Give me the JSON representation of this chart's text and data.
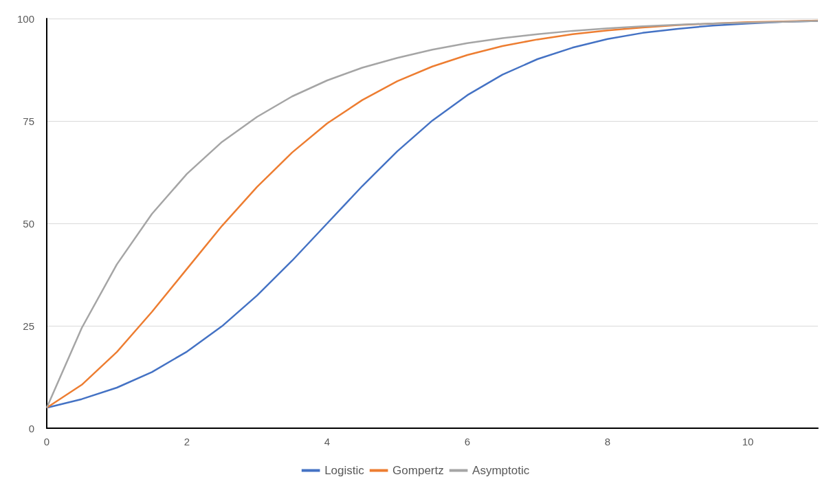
{
  "chart_data": {
    "type": "line",
    "x": [
      0,
      0.5,
      1,
      1.5,
      2,
      2.5,
      3,
      3.5,
      4,
      4.5,
      5,
      5.5,
      6,
      6.5,
      7,
      7.5,
      8,
      8.5,
      9,
      9.5,
      10,
      10.5,
      11
    ],
    "series": [
      {
        "name": "Logistic",
        "color": "#4472c4",
        "values": [
          5.0,
          7.1,
          9.9,
          13.7,
          18.7,
          24.9,
          32.4,
          40.9,
          50,
          59.1,
          67.6,
          75.1,
          81.3,
          86.3,
          90.1,
          92.9,
          95.0,
          96.5,
          97.5,
          98.3,
          98.8,
          99.2,
          99.4
        ]
      },
      {
        "name": "Gompertz",
        "color": "#ed7d31",
        "values": [
          5.0,
          10.6,
          18.6,
          28.4,
          38.9,
          49.4,
          58.9,
          67.3,
          74.4,
          80.1,
          84.7,
          88.3,
          91.1,
          93.3,
          94.9,
          96.2,
          97.1,
          97.8,
          98.4,
          98.8,
          99.1,
          99.3,
          99.5
        ]
      },
      {
        "name": "Asymptotic",
        "color": "#a5a5a5",
        "values": [
          5,
          24.5,
          40.0,
          52.3,
          62.1,
          69.9,
          76.0,
          81.0,
          84.9,
          88.0,
          90.4,
          92.4,
          94.0,
          95.2,
          96.2,
          97.0,
          97.6,
          98.1,
          98.5,
          98.8,
          99.0,
          99.2,
          99.4
        ]
      }
    ],
    "xlim": [
      0,
      11
    ],
    "xticks": [
      0,
      2,
      4,
      6,
      8,
      10
    ],
    "ylim": [
      0,
      100
    ],
    "yticks": [
      0,
      25,
      50,
      75,
      100
    ],
    "grid": "y",
    "legend": "bottom",
    "marker": "none",
    "line_style": "solid"
  }
}
